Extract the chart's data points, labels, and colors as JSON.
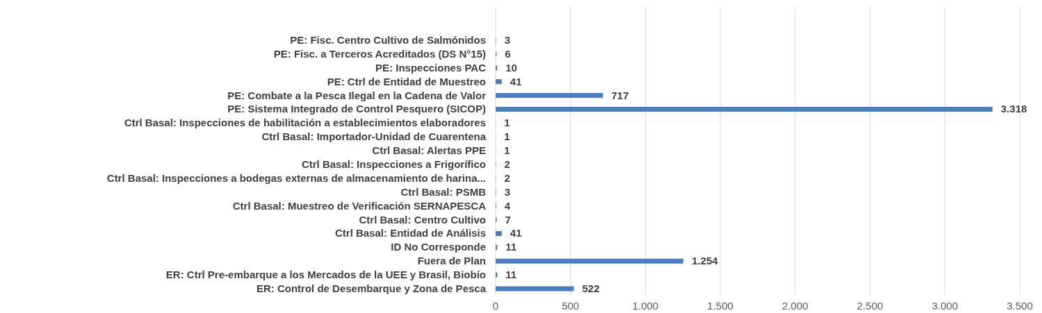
{
  "chart_data": {
    "type": "bar",
    "orientation": "horizontal",
    "categories": [
      "PE: Fisc. Centro Cultivo de Salmónidos",
      "PE: Fisc. a Terceros Acreditados (DS N°15)",
      "PE: Inspecciones PAC",
      "PE: Ctrl de Entidad de Muestreo",
      "PE: Combate a la Pesca Ilegal en la Cadena de Valor",
      "PE: Sistema Integrado de Control Pesquero (SICOP)",
      "Ctrl Basal: Inspecciones de habilitación a establecimientos elaboradores",
      "Ctrl Basal: Importador-Unidad de Cuarentena",
      "Ctrl Basal: Alertas PPE",
      "Ctrl Basal: Inspecciones a Frigorífico",
      "Ctrl Basal: Inspecciones a bodegas externas de almacenamiento de harina...",
      "Ctrl Basal: PSMB",
      "Ctrl Basal: Muestreo de Verificación SERNAPESCA",
      "Ctrl Basal: Centro Cultivo",
      "Ctrl Basal: Entidad de Análisis",
      "ID No Corresponde",
      "Fuera de Plan",
      "ER: Ctrl Pre-embarque a los Mercados de la UEE y Brasil, Biobío",
      "ER: Control de Desembarque y Zona de Pesca"
    ],
    "values": [
      3,
      6,
      10,
      41,
      717,
      3318,
      1,
      1,
      1,
      2,
      2,
      3,
      4,
      7,
      41,
      11,
      1254,
      11,
      522
    ],
    "value_labels": [
      "3",
      "6",
      "10",
      "41",
      "717",
      "3.318",
      "1",
      "1",
      "1",
      "2",
      "2",
      "3",
      "4",
      "7",
      "41",
      "11",
      "1.254",
      "11",
      "522"
    ],
    "color": "#4a7ebf",
    "xlim": [
      0,
      3500
    ],
    "xticks": [
      0,
      500,
      {
        "value": 1000,
        "label": "1.000"
      },
      {
        "value": 1500,
        "label": "1.500"
      },
      {
        "value": 2000,
        "label": "2.000"
      },
      {
        "value": 2500,
        "label": "2.500"
      },
      {
        "value": 3000,
        "label": "3.000"
      },
      {
        "value": 3500,
        "label": "3.500"
      }
    ],
    "grid": "x"
  }
}
